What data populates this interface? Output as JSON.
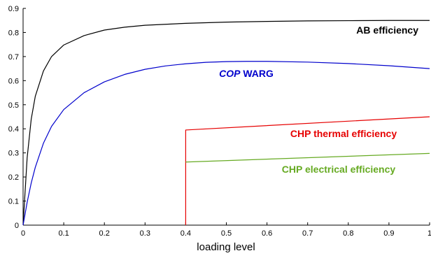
{
  "chart_data": {
    "type": "line",
    "xlabel": "loading level",
    "ylabel": "",
    "xlim": [
      0,
      1
    ],
    "ylim": [
      0,
      0.9
    ],
    "grid": false,
    "legend": "none",
    "x_ticks": [
      "0",
      "0.1",
      "0.2",
      "0.3",
      "0.4",
      "0.5",
      "0.6",
      "0.7",
      "0.8",
      "0.9",
      "1"
    ],
    "y_ticks": [
      "0",
      "0.1",
      "0.2",
      "0.3",
      "0.4",
      "0.5",
      "0.6",
      "0.7",
      "0.8",
      "0.9"
    ],
    "series": [
      {
        "name": "AB efficiency",
        "color": "#000000",
        "label_parts": [
          {
            "text": "AB efficiency",
            "italic": false
          }
        ],
        "x": [
          0,
          0.01,
          0.02,
          0.03,
          0.05,
          0.07,
          0.1,
          0.15,
          0.2,
          0.25,
          0.3,
          0.4,
          0.5,
          0.6,
          0.7,
          0.8,
          0.9,
          1.0
        ],
        "y": [
          0,
          0.28,
          0.44,
          0.535,
          0.64,
          0.7,
          0.748,
          0.787,
          0.81,
          0.822,
          0.83,
          0.838,
          0.843,
          0.846,
          0.848,
          0.849,
          0.85,
          0.85
        ]
      },
      {
        "name": "COP WARG",
        "color": "#0000cc",
        "label_parts": [
          {
            "text": "COP",
            "italic": true
          },
          {
            "text": " WARG",
            "italic": false
          }
        ],
        "x": [
          0,
          0.01,
          0.02,
          0.03,
          0.05,
          0.07,
          0.1,
          0.15,
          0.2,
          0.25,
          0.3,
          0.35,
          0.4,
          0.45,
          0.5,
          0.55,
          0.6,
          0.7,
          0.8,
          0.9,
          1.0
        ],
        "y": [
          0,
          0.095,
          0.175,
          0.24,
          0.34,
          0.41,
          0.48,
          0.55,
          0.595,
          0.626,
          0.647,
          0.661,
          0.67,
          0.676,
          0.679,
          0.68,
          0.68,
          0.677,
          0.671,
          0.662,
          0.65
        ]
      },
      {
        "name": "CHP thermal efficiency",
        "color": "#e60000",
        "label_parts": [
          {
            "text": "CHP thermal efficiency",
            "italic": false
          }
        ],
        "x": [
          0.4,
          0.4,
          1.0
        ],
        "y": [
          0,
          0.395,
          0.45
        ]
      },
      {
        "name": "CHP electrical efficiency",
        "color": "#66aa22",
        "label_parts": [
          {
            "text": "CHP electrical efficiency",
            "italic": false
          }
        ],
        "x": [
          0.4,
          1.0
        ],
        "y": [
          0.262,
          0.298
        ]
      }
    ]
  }
}
